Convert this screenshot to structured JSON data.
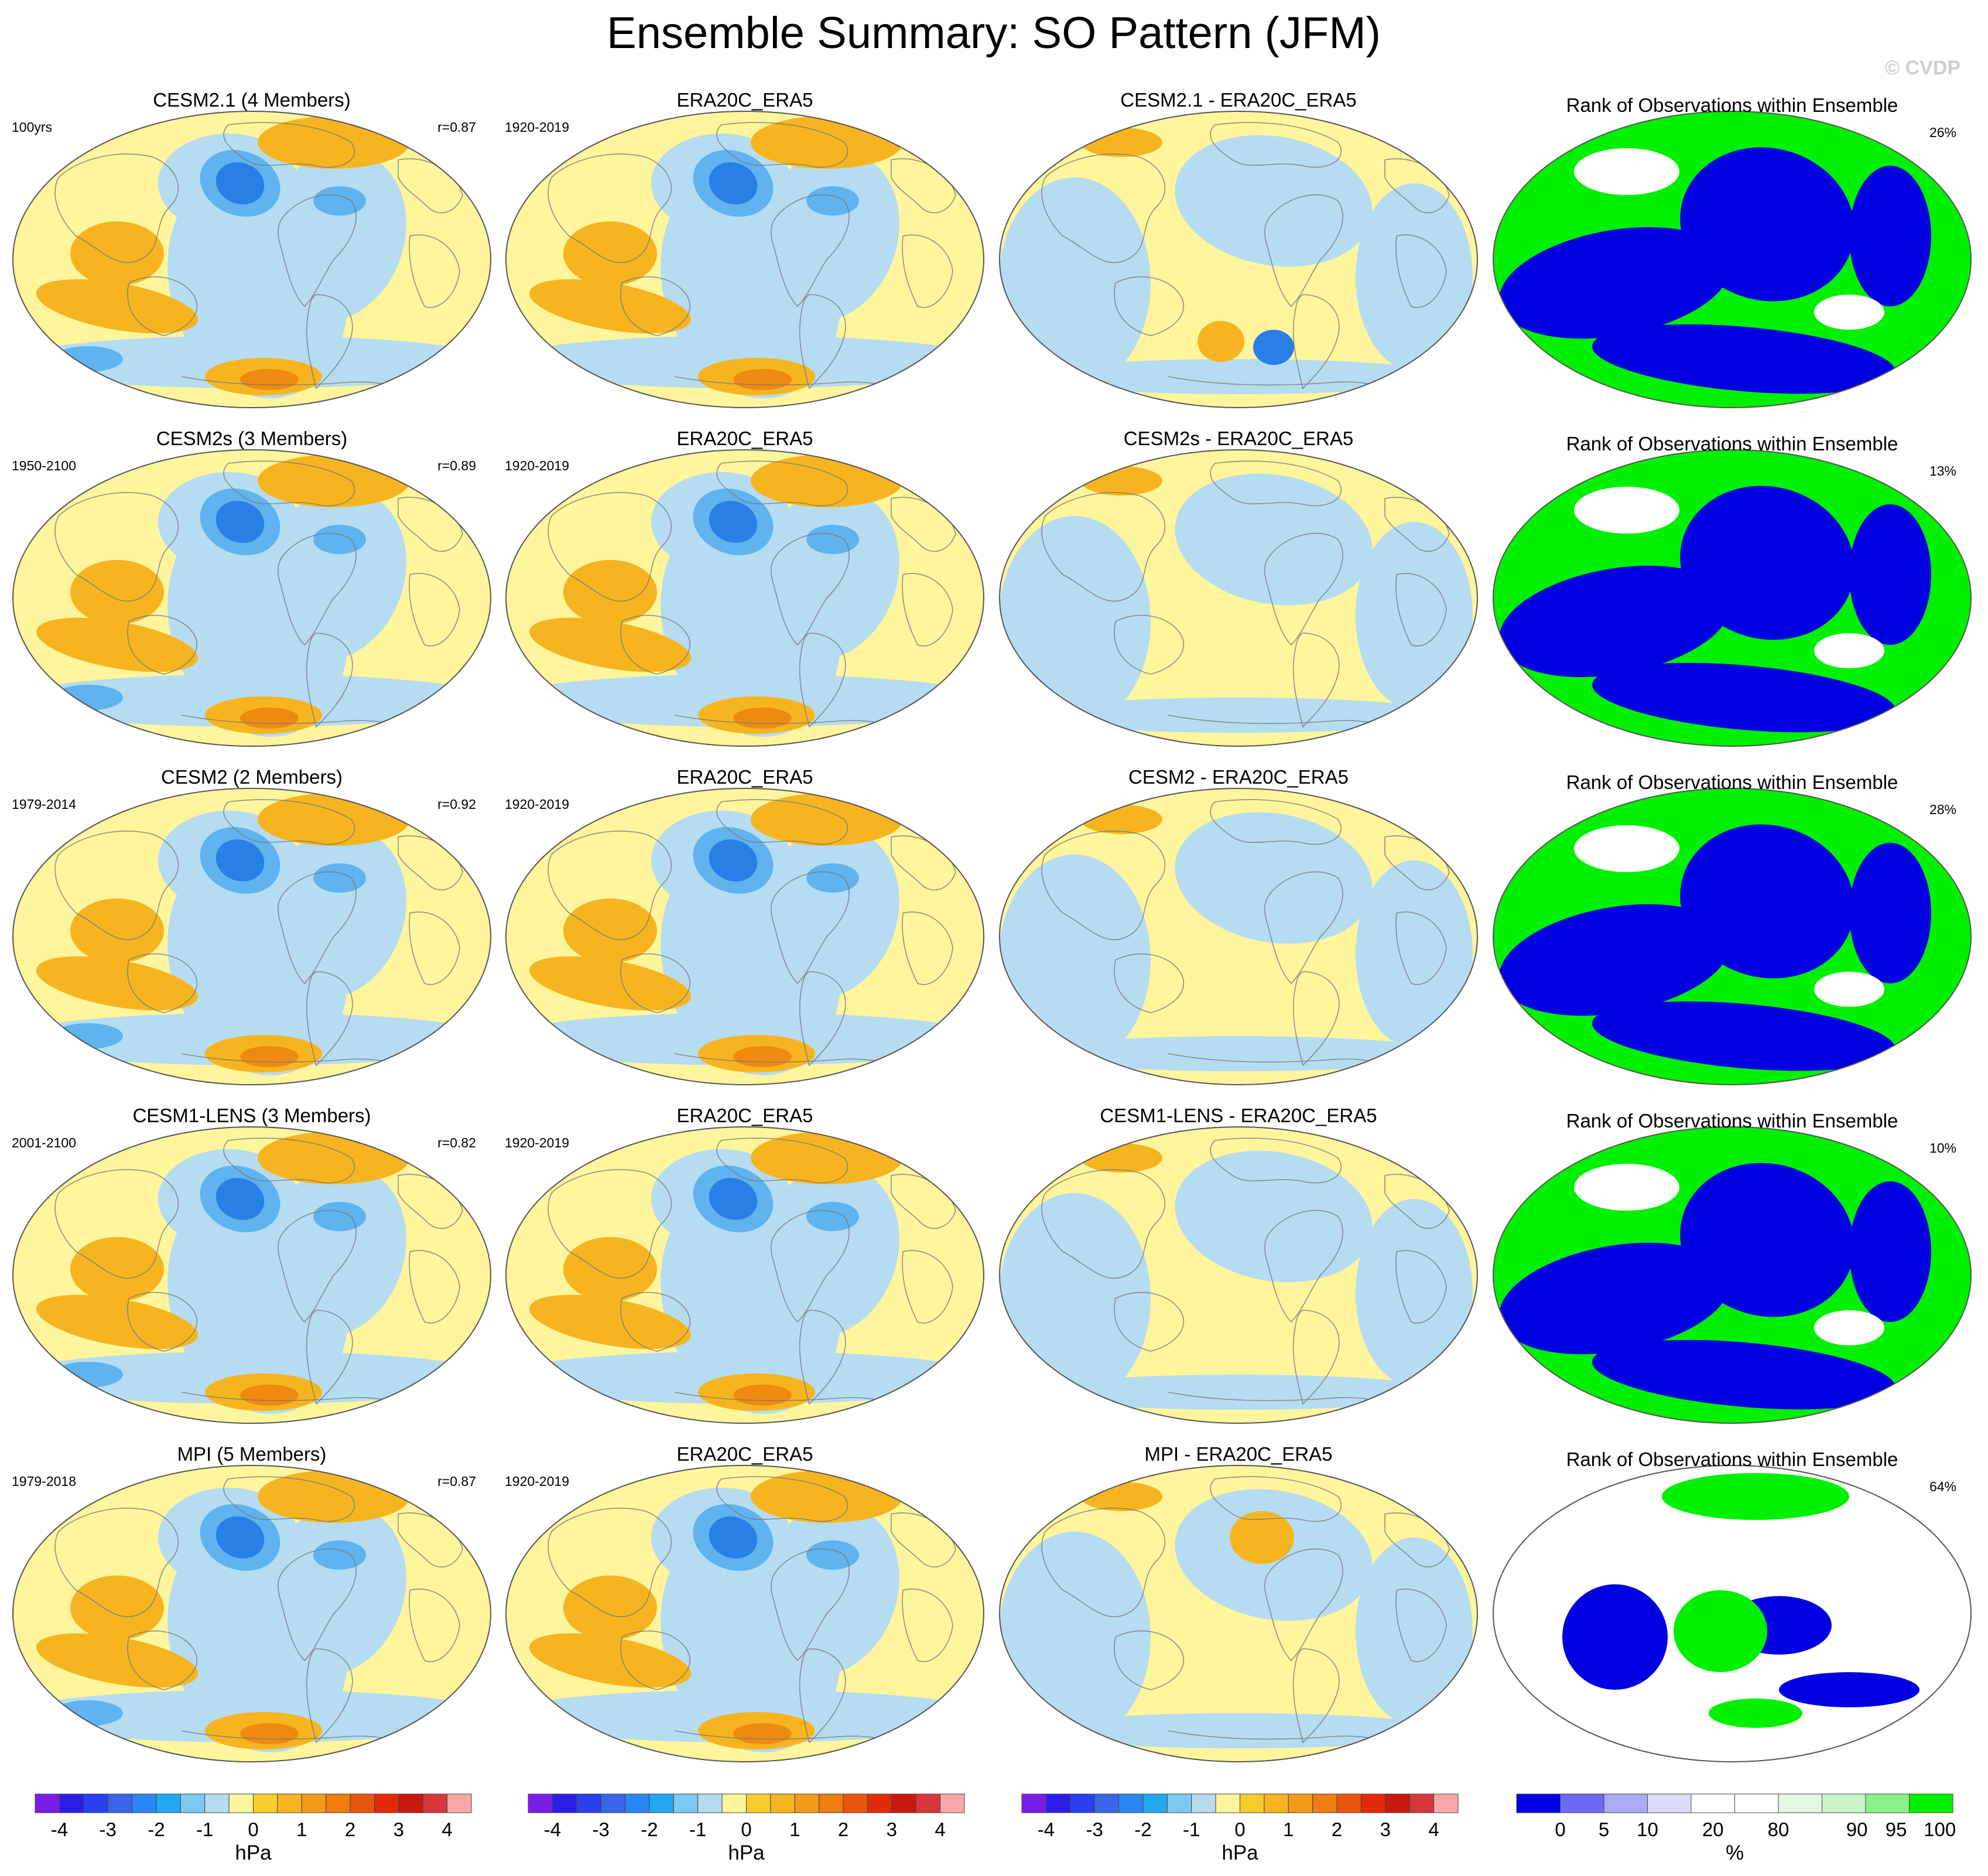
{
  "figure": {
    "title": "Ensemble Summary: SO Pattern (JFM)",
    "credit": "© CVDP"
  },
  "colors": {
    "ocean_light_blue": "#b6dcf2",
    "pale_yellow": "#fff59d",
    "orange": "#f6b520",
    "dark_orange": "#ee8a10",
    "blue_low": "#2a7fe6",
    "rank_blue": "#0000e0",
    "rank_green": "#00f000"
  },
  "rows": [
    {
      "model": {
        "title": "CESM2.1 (4 Members)",
        "period": "100yrs",
        "r": "r=0.87"
      },
      "obs": {
        "title": "ERA20C_ERA5",
        "period": "1920-2019"
      },
      "diff": {
        "title": "CESM2.1 - ERA20C_ERA5"
      },
      "rank": {
        "title": "Rank of Observations within Ensemble",
        "pct": "26%"
      }
    },
    {
      "model": {
        "title": "CESM2s (3 Members)",
        "period": "1950-2100",
        "r": "r=0.89"
      },
      "obs": {
        "title": "ERA20C_ERA5",
        "period": "1920-2019"
      },
      "diff": {
        "title": "CESM2s - ERA20C_ERA5"
      },
      "rank": {
        "title": "Rank of Observations within Ensemble",
        "pct": "13%"
      }
    },
    {
      "model": {
        "title": "CESM2 (2 Members)",
        "period": "1979-2014",
        "r": "r=0.92"
      },
      "obs": {
        "title": "ERA20C_ERA5",
        "period": "1920-2019"
      },
      "diff": {
        "title": "CESM2 - ERA20C_ERA5"
      },
      "rank": {
        "title": "Rank of Observations within Ensemble",
        "pct": "28%"
      }
    },
    {
      "model": {
        "title": "CESM1-LENS (3 Members)",
        "period": "2001-2100",
        "r": "r=0.82"
      },
      "obs": {
        "title": "ERA20C_ERA5",
        "period": "1920-2019"
      },
      "diff": {
        "title": "CESM1-LENS - ERA20C_ERA5"
      },
      "rank": {
        "title": "Rank of Observations within Ensemble",
        "pct": "10%"
      }
    },
    {
      "model": {
        "title": "MPI (5 Members)",
        "period": "1979-2018",
        "r": "r=0.87"
      },
      "obs": {
        "title": "ERA20C_ERA5",
        "period": "1920-2019"
      },
      "diff": {
        "title": "MPI - ERA20C_ERA5"
      },
      "rank": {
        "title": "Rank of Observations within Ensemble",
        "pct": "64%"
      }
    }
  ],
  "colorbars": {
    "hpa": {
      "unit": "hPa",
      "ticks": [
        "-4",
        "-3",
        "-2",
        "-1",
        "0",
        "1",
        "2",
        "3",
        "4"
      ],
      "colors": [
        "#7a1ce6",
        "#2a1ee6",
        "#2a3ff0",
        "#3a64e6",
        "#2a86f0",
        "#23a8f0",
        "#7cc8f0",
        "#b6dcf2",
        "#fff59d",
        "#f6cd2a",
        "#f6b520",
        "#f29a18",
        "#ee7d12",
        "#e8560e",
        "#e02a0a",
        "#c81810",
        "#d8363c",
        "#f6a8a8"
      ]
    },
    "rank": {
      "unit": "%",
      "ticks": [
        "0",
        "5",
        "10",
        "20",
        "80",
        "90",
        "95",
        "100"
      ],
      "colors": [
        "#0000e0",
        "#6a6af2",
        "#aaaaf5",
        "#dcdcf9",
        "#ffffff",
        "#ffffff",
        "#e3f8e3",
        "#c8f4c8",
        "#8af08a",
        "#00f000"
      ]
    }
  },
  "chart_data": [
    {
      "type": "heatmap",
      "title": "Ensemble Summary: SO Pattern (JFM)",
      "description_units": "hPa",
      "panels": "5 rows x 4 columns of global maps (Robinson-like projection)",
      "columns": [
        "model ensemble mean",
        "observations (ERA20C_ERA5)",
        "model - observations",
        "Rank of Observations within Ensemble"
      ],
      "pattern_correlations": [
        {
          "model": "CESM2.1 (4 Members)",
          "r": 0.87,
          "rank_pct": 26
        },
        {
          "model": "CESM2s (3 Members)",
          "r": 0.89,
          "rank_pct": 13
        },
        {
          "model": "CESM2 (2 Members)",
          "r": 0.92,
          "rank_pct": 28
        },
        {
          "model": "CESM1-LENS (3 Members)",
          "r": 0.82,
          "rank_pct": 10
        },
        {
          "model": "MPI (5 Members)",
          "r": 0.87,
          "rank_pct": 64
        }
      ],
      "colorbar_levels_hpa": [
        -4,
        -3.5,
        -3,
        -2.5,
        -2,
        -1.5,
        -1,
        -0.5,
        0,
        0.5,
        1,
        1.5,
        2,
        2.5,
        3,
        3.5,
        4
      ],
      "colorbar_levels_rank_pct": [
        0,
        5,
        10,
        20,
        80,
        90,
        95,
        100
      ]
    }
  ]
}
